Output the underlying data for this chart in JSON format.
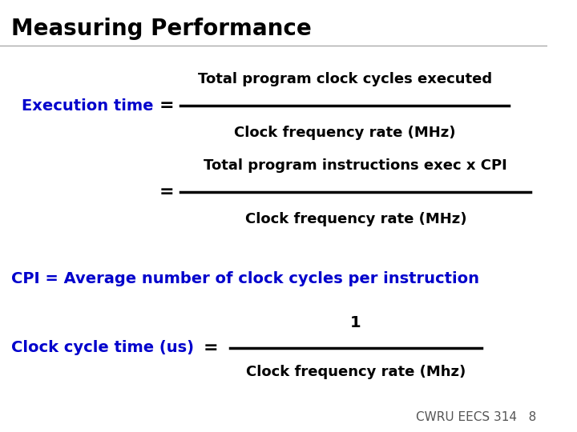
{
  "title": "Measuring Performance",
  "title_color": "#000000",
  "title_fontsize": 20,
  "bg_color": "#ffffff",
  "blue_color": "#0000CC",
  "black_color": "#000000",
  "exec_time_label": "Execution time",
  "fraction1_numerator": "Total program clock cycles executed",
  "fraction1_denominator": "Clock frequency rate (MHz)",
  "fraction2_numerator": "Total program instructions exec x CPI",
  "fraction2_denominator": "Clock frequency rate (MHz)",
  "cpi_line": "CPI = Average number of clock cycles per instruction",
  "clock_label": "Clock cycle time (us)",
  "clock_num": "1",
  "clock_den": "Clock frequency rate (Mhz)",
  "footer": "CWRU EECS 314   8",
  "footer_color": "#555555",
  "footer_fontsize": 11
}
